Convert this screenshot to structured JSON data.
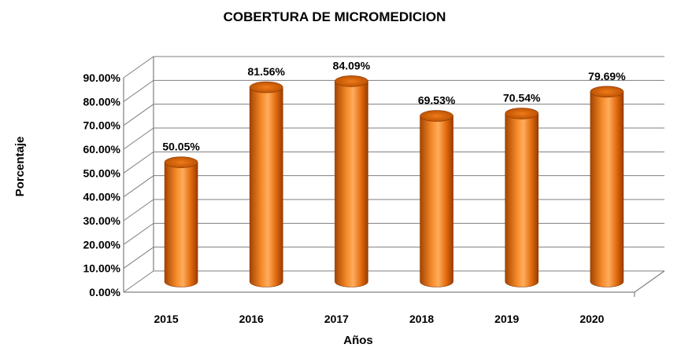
{
  "chart_data": {
    "type": "bar",
    "style": "3d-cylinder",
    "title": "COBERTURA DE MICROMEDICION",
    "xlabel": "Años",
    "ylabel": "Porcentaje",
    "categories": [
      "2015",
      "2016",
      "2017",
      "2018",
      "2019",
      "2020"
    ],
    "values": [
      50.05,
      81.56,
      84.09,
      69.53,
      70.54,
      79.69
    ],
    "data_labels": [
      "50.05%",
      "81.56%",
      "84.09%",
      "69.53%",
      "70.54%",
      "79.69%"
    ],
    "y_ticks": [
      "0.00%",
      "10.00%",
      "20.00%",
      "30.00%",
      "40.00%",
      "50.00%",
      "60.00%",
      "70.00%",
      "80.00%",
      "90.00%"
    ],
    "ylim": [
      0,
      90
    ],
    "grid": true,
    "legend": "none",
    "colors": {
      "bar": "#e8700f",
      "bar_dark": "#9e3f00",
      "bar_light": "#ffb870",
      "grid": "#7f7f7f"
    }
  }
}
